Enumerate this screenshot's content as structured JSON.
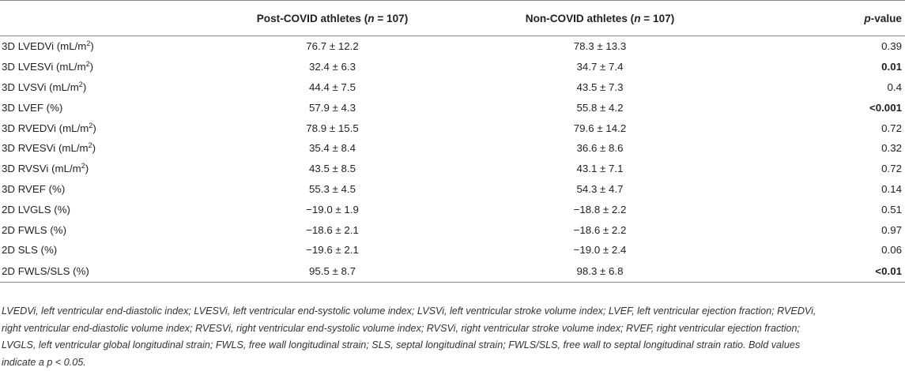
{
  "table": {
    "headers": {
      "parameter": "",
      "post_covid_prefix": "Post-COVID athletes (",
      "post_covid_n": "n",
      "post_covid_suffix": " = 107)",
      "non_covid_prefix": "Non-COVID athletes (",
      "non_covid_n": "n",
      "non_covid_suffix": " = 107)",
      "pvalue_p": "p",
      "pvalue_suffix": "-value"
    },
    "rows": [
      {
        "param": "3D LVEDVi (mL/m",
        "sup": "2",
        "close": ")",
        "post": "76.7 ± 12.2",
        "non": "78.3 ± 13.3",
        "p": "0.39",
        "bold": false
      },
      {
        "param": "3D LVESVi (mL/m",
        "sup": "2",
        "close": ")",
        "post": "32.4 ± 6.3",
        "non": "34.7 ± 7.4",
        "p": "0.01",
        "bold": true
      },
      {
        "param": "3D LVSVi (mL/m",
        "sup": "2",
        "close": ")",
        "post": "44.4 ± 7.5",
        "non": "43.5 ± 7.3",
        "p": "0.4",
        "bold": false
      },
      {
        "param": "3D LVEF (%)",
        "sup": "",
        "close": "",
        "post": "57.9 ± 4.3",
        "non": "55.8 ± 4.2",
        "p": "<0.001",
        "bold": true
      },
      {
        "param": "3D RVEDVi (mL/m",
        "sup": "2",
        "close": ")",
        "post": "78.9 ± 15.5",
        "non": "79.6 ± 14.2",
        "p": "0.72",
        "bold": false
      },
      {
        "param": "3D RVESVi (mL/m",
        "sup": "2",
        "close": ")",
        "post": "35.4 ± 8.4",
        "non": "36.6 ± 8.6",
        "p": "0.32",
        "bold": false
      },
      {
        "param": "3D RVSVi (mL/m",
        "sup": "2",
        "close": ")",
        "post": "43.5 ± 8.5",
        "non": "43.1 ± 7.1",
        "p": "0.72",
        "bold": false
      },
      {
        "param": "3D RVEF (%)",
        "sup": "",
        "close": "",
        "post": "55.3 ± 4.5",
        "non": "54.3 ± 4.7",
        "p": "0.14",
        "bold": false
      },
      {
        "param": "2D LVGLS (%)",
        "sup": "",
        "close": "",
        "post": "−19.0 ± 1.9",
        "non": "−18.8 ± 2.2",
        "p": "0.51",
        "bold": false
      },
      {
        "param": "2D FWLS (%)",
        "sup": "",
        "close": "",
        "post": "−18.6 ± 2.1",
        "non": "−18.6 ± 2.2",
        "p": "0.97",
        "bold": false
      },
      {
        "param": "2D SLS (%)",
        "sup": "",
        "close": "",
        "post": "−19.6 ± 2.1",
        "non": "−19.0 ± 2.4",
        "p": "0.06",
        "bold": false
      },
      {
        "param": "2D FWLS/SLS (%)",
        "sup": "",
        "close": "",
        "post": "95.5 ± 8.7",
        "non": "98.3 ± 6.8",
        "p": "<0.01",
        "bold": true
      }
    ]
  },
  "footnote": {
    "line1": "LVEDVi, left ventricular end-diastolic index; LVESVi, left ventricular end-systolic volume index; LVSVi, left ventricular stroke volume index; LVEF, left ventricular ejection fraction; RVEDVi,",
    "line2": "right ventricular end-diastolic volume index; RVESVi, right ventricular end-systolic volume index; RVSVi, right ventricular stroke volume index; RVEF, right ventricular ejection fraction;",
    "line3": "LVGLS, left ventricular global longitudinal strain; FWLS, free wall longitudinal strain; SLS, septal longitudinal strain; FWLS/SLS, free wall to septal longitudinal strain ratio. Bold values",
    "line4": "indicate a p < 0.05."
  }
}
